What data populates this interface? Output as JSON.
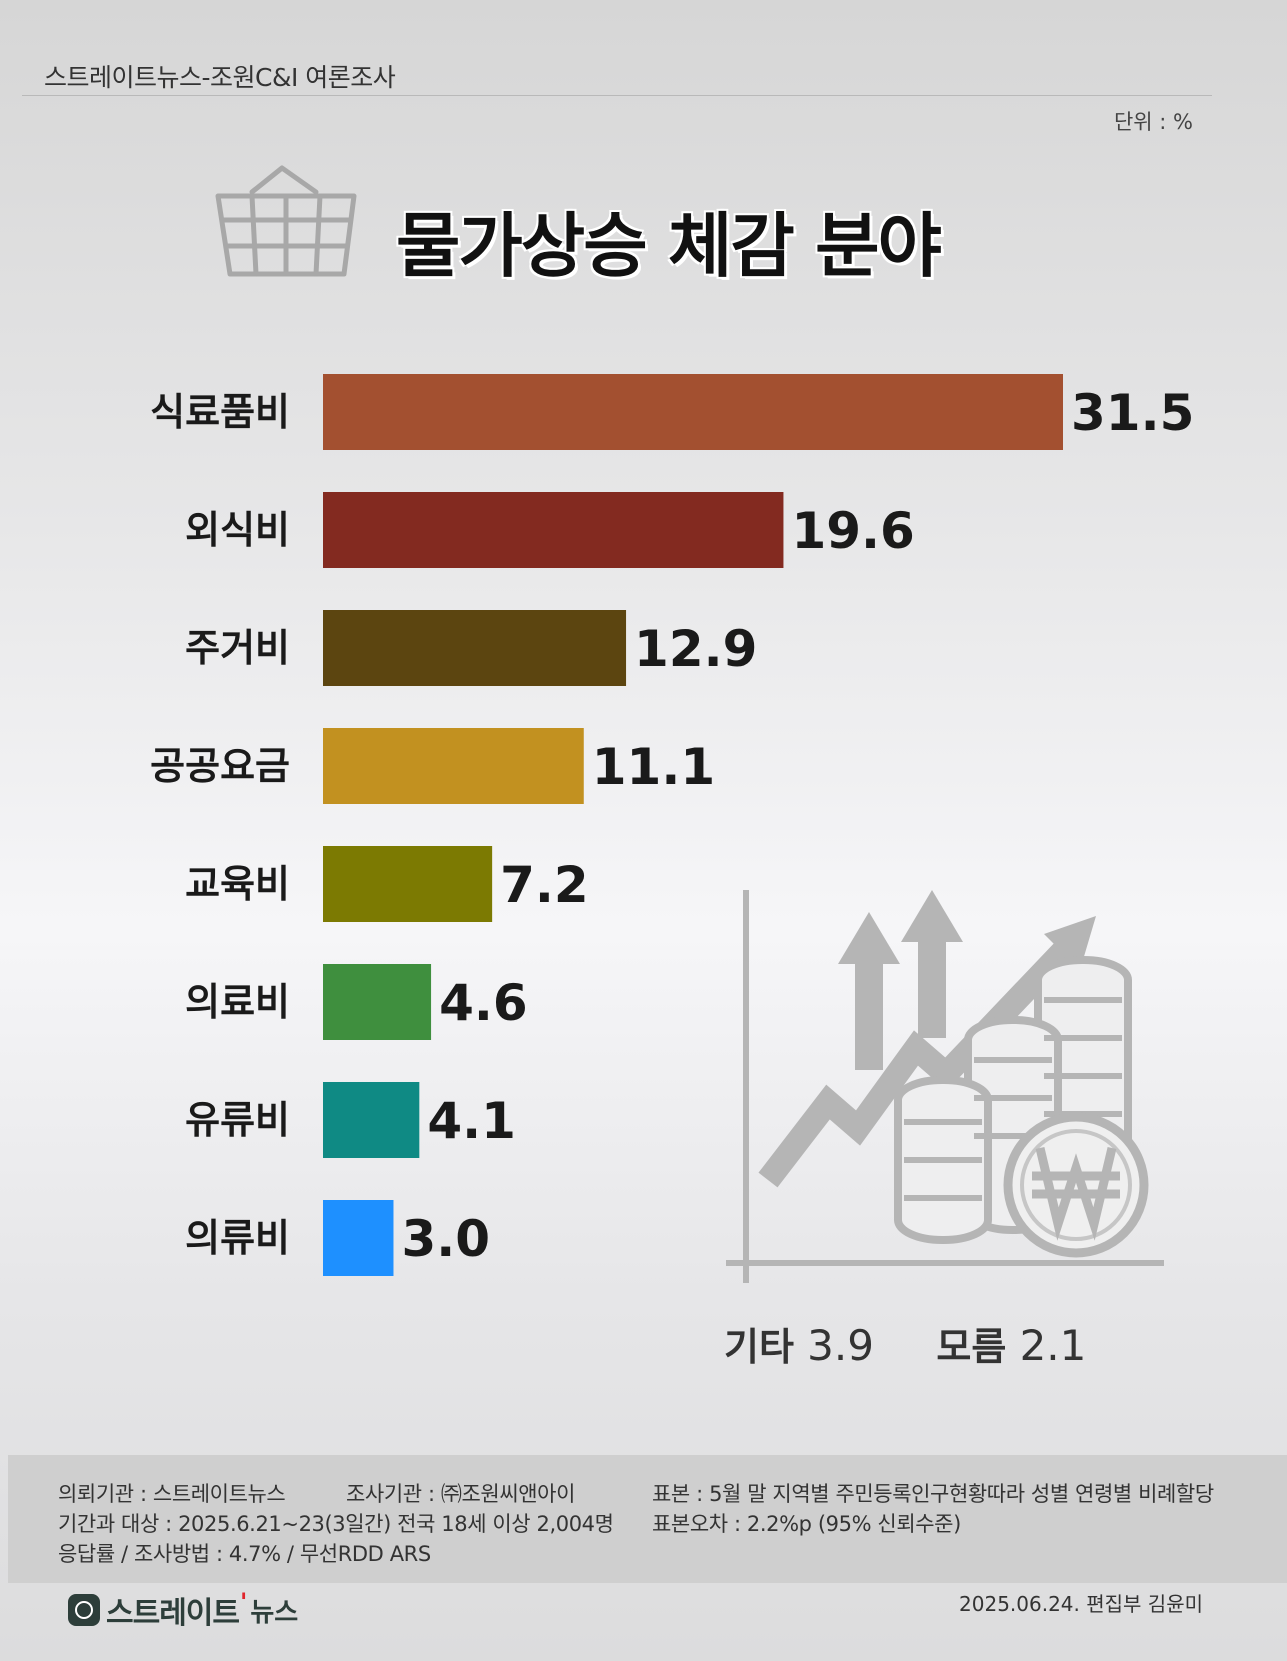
{
  "header": {
    "source": "스트레이트뉴스-조원C&I 여론조사",
    "unit": "단위 : %",
    "title": "물가상승 체감 분야"
  },
  "chart_data": {
    "type": "bar",
    "orientation": "horizontal",
    "title": "물가상승 체감 분야",
    "unit": "%",
    "categories": [
      "식료품비",
      "외식비",
      "주거비",
      "공공요금",
      "교육비",
      "의료비",
      "유류비",
      "의류비"
    ],
    "values": [
      31.5,
      19.6,
      12.9,
      11.1,
      7.2,
      4.6,
      4.1,
      3.0
    ],
    "value_labels": [
      "31.5",
      "19.6",
      "12.9",
      "11.1",
      "7.2",
      "4.6",
      "4.1",
      "3.0"
    ],
    "colors": [
      "#a35030",
      "#832a20",
      "#5c4510",
      "#c29120",
      "#7c7a02",
      "#3f8f3e",
      "#0f8a84",
      "#1e90ff"
    ],
    "xlim": [
      0,
      31.5
    ],
    "grid": false,
    "legend": "none",
    "others": [
      {
        "label": "기타",
        "value": "3.9"
      },
      {
        "label": "모름",
        "value": "2.1"
      }
    ]
  },
  "footer": {
    "client": "의뢰기관 : 스트레이트뉴스",
    "agency": "조사기관 : ㈜조원씨앤아이",
    "sample": "표본 : 5월 말 지역별 주민등록인구현황따라 성별 연령별 비례할당",
    "period": "기간과 대상 : 2025.6.21~23(3일간)   전국 18세 이상  2,004명",
    "error": "표본오차 : 2.2%p (95% 신뢰수준)",
    "method": "응답률 / 조사방법 : 4.7% / 무선RDD ARS",
    "logo_main": "스트레이트",
    "logo_sub": "뉴스",
    "credit": "2025.06.24. 편집부 김윤미"
  }
}
